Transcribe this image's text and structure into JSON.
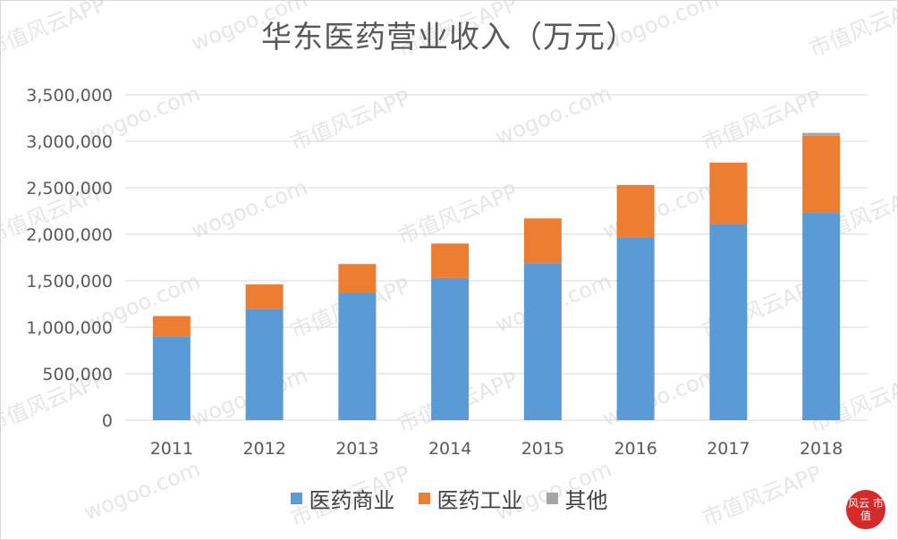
{
  "chart_data": {
    "type": "bar",
    "stacked": true,
    "title": "华东医药营业收入（万元）",
    "categories": [
      "2011",
      "2012",
      "2013",
      "2014",
      "2015",
      "2016",
      "2017",
      "2018"
    ],
    "series": [
      {
        "name": "医药商业",
        "color": "#5b9bd5",
        "values": [
          900000,
          1200000,
          1370000,
          1530000,
          1690000,
          1970000,
          2110000,
          2230000
        ]
      },
      {
        "name": "医药工业",
        "color": "#ed7d31",
        "values": [
          220000,
          260000,
          310000,
          370000,
          480000,
          560000,
          660000,
          830000
        ]
      },
      {
        "name": "其他",
        "color": "#a5a5a5",
        "values": [
          0,
          0,
          0,
          0,
          0,
          0,
          0,
          30000
        ]
      }
    ],
    "ylim": [
      0,
      3500000
    ],
    "yticks": [
      "0",
      "500,000",
      "1,000,000",
      "1,500,000",
      "2,000,000",
      "2,500,000",
      "3,000,000",
      "3,500,000"
    ],
    "ytick_values": [
      0,
      500000,
      1000000,
      1500000,
      2000000,
      2500000,
      3000000,
      3500000
    ],
    "grid": true,
    "legend_position": "bottom"
  },
  "watermark": {
    "brand": "市值风云APP",
    "site": "wogoo.com"
  },
  "seal": {
    "text": "风云 市值"
  }
}
